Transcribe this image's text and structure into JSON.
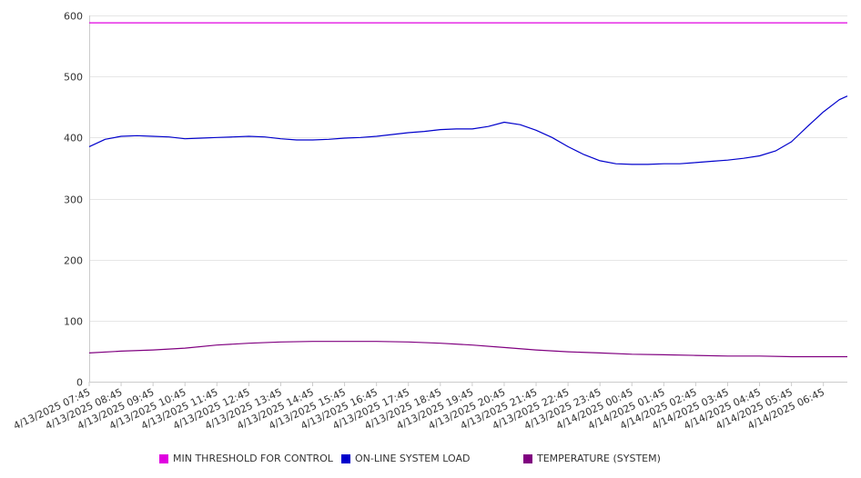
{
  "chart_data": {
    "type": "line",
    "title": "",
    "xlabel": "",
    "ylabel": "",
    "ylim": [
      0,
      600
    ],
    "y_ticks": [
      "0",
      "100",
      "200",
      "300",
      "400",
      "500",
      "600"
    ],
    "y_tick_values": [
      0,
      100,
      200,
      300,
      400,
      500,
      600
    ],
    "x_tick_labels": [
      "4/13/2025 07:45",
      "4/13/2025 08:45",
      "4/13/2025 09:45",
      "4/13/2025 10:45",
      "4/13/2025 11:45",
      "4/13/2025 12:45",
      "4/13/2025 13:45",
      "4/13/2025 14:45",
      "4/13/2025 15:45",
      "4/13/2025 16:45",
      "4/13/2025 17:45",
      "4/13/2025 18:45",
      "4/13/2025 19:45",
      "4/13/2025 20:45",
      "4/13/2025 21:45",
      "4/13/2025 22:45",
      "4/13/2025 23:45",
      "4/14/2025 00:45",
      "4/14/2025 01:45",
      "4/14/2025 02:45",
      "4/14/2025 03:45",
      "4/14/2025 04:45",
      "4/14/2025 05:45",
      "4/14/2025 06:45"
    ],
    "x_range": [
      "4/13/2025 07:45",
      "4/14/2025 07:30"
    ],
    "grid": "horizontal",
    "legend_position": "bottom",
    "series": [
      {
        "name": "MIN THRESHOLD FOR CONTROL",
        "color": "#e000e0",
        "x": [
          "4/13/2025 07:45",
          "4/14/2025 07:30"
        ],
        "values": [
          588,
          588
        ]
      },
      {
        "name": "ON-LINE SYSTEM LOAD",
        "color": "#0000cc",
        "x": [
          "4/13/2025 07:45",
          "4/13/2025 08:15",
          "4/13/2025 08:45",
          "4/13/2025 09:15",
          "4/13/2025 09:45",
          "4/13/2025 10:15",
          "4/13/2025 10:45",
          "4/13/2025 11:15",
          "4/13/2025 11:45",
          "4/13/2025 12:15",
          "4/13/2025 12:45",
          "4/13/2025 13:15",
          "4/13/2025 13:45",
          "4/13/2025 14:15",
          "4/13/2025 14:45",
          "4/13/2025 15:15",
          "4/13/2025 15:45",
          "4/13/2025 16:15",
          "4/13/2025 16:45",
          "4/13/2025 17:15",
          "4/13/2025 17:45",
          "4/13/2025 18:15",
          "4/13/2025 18:45",
          "4/13/2025 19:15",
          "4/13/2025 19:45",
          "4/13/2025 20:15",
          "4/13/2025 20:45",
          "4/13/2025 21:15",
          "4/13/2025 21:45",
          "4/13/2025 22:15",
          "4/13/2025 22:45",
          "4/13/2025 23:15",
          "4/13/2025 23:45",
          "4/14/2025 00:15",
          "4/14/2025 00:45",
          "4/14/2025 01:15",
          "4/14/2025 01:45",
          "4/14/2025 02:15",
          "4/14/2025 02:45",
          "4/14/2025 03:15",
          "4/14/2025 03:45",
          "4/14/2025 04:15",
          "4/14/2025 04:45",
          "4/14/2025 05:15",
          "4/14/2025 05:45",
          "4/14/2025 06:15",
          "4/14/2025 06:45",
          "4/14/2025 07:15",
          "4/14/2025 07:30"
        ],
        "values": [
          385,
          397,
          402,
          403,
          402,
          401,
          398,
          399,
          400,
          401,
          402,
          401,
          398,
          396,
          396,
          397,
          399,
          400,
          402,
          405,
          408,
          410,
          413,
          414,
          414,
          418,
          425,
          421,
          412,
          400,
          385,
          372,
          362,
          357,
          356,
          356,
          357,
          357,
          359,
          361,
          363,
          366,
          370,
          378,
          393,
          418,
          442,
          462,
          468
        ]
      },
      {
        "name": "TEMPERATURE (SYSTEM)",
        "color": "#800080",
        "x": [
          "4/13/2025 07:45",
          "4/13/2025 08:45",
          "4/13/2025 09:45",
          "4/13/2025 10:45",
          "4/13/2025 11:45",
          "4/13/2025 12:45",
          "4/13/2025 13:45",
          "4/13/2025 14:45",
          "4/13/2025 15:45",
          "4/13/2025 16:45",
          "4/13/2025 17:45",
          "4/13/2025 18:45",
          "4/13/2025 19:45",
          "4/13/2025 20:45",
          "4/13/2025 21:45",
          "4/13/2025 22:45",
          "4/13/2025 23:45",
          "4/14/2025 00:45",
          "4/14/2025 01:45",
          "4/14/2025 02:45",
          "4/14/2025 03:45",
          "4/14/2025 04:45",
          "4/14/2025 05:45",
          "4/14/2025 06:45",
          "4/14/2025 07:30"
        ],
        "values": [
          47,
          50,
          52,
          55,
          60,
          63,
          65,
          66,
          66,
          66,
          65,
          63,
          60,
          56,
          52,
          49,
          47,
          45,
          44,
          43,
          42,
          42,
          41,
          41,
          41
        ]
      }
    ]
  }
}
